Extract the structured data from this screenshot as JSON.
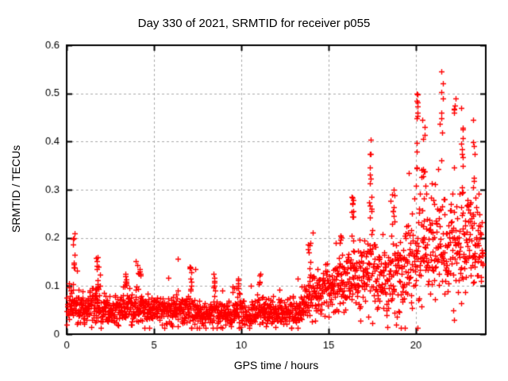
{
  "chart_data": {
    "type": "scatter",
    "title": "Day 330 of 2021, SRMTID for receiver p055",
    "xlabel": "GPS time / hours",
    "ylabel": "SRMTID / TECUs",
    "xlim": [
      0,
      24
    ],
    "ylim": [
      0,
      0.6
    ],
    "xticks": [
      0,
      5,
      10,
      15,
      20
    ],
    "xtick_labels": [
      "0",
      "5",
      "10",
      "15",
      "20"
    ],
    "yticks": [
      0,
      0.1,
      0.2,
      0.3,
      0.4,
      0.5,
      0.6
    ],
    "ytick_labels": [
      "0",
      "0.1",
      "0.2",
      "0.3",
      "0.4",
      "0.5",
      "0.6"
    ],
    "grid": "dashed",
    "legend": "none",
    "marker": "plus",
    "marker_color": "#ff0000",
    "frame_color": "#000000",
    "grid_color": "#aaaaaa",
    "background_color": "#ffffff",
    "text_color": "#000000",
    "points_per_hour": 76,
    "t_end": 23.85,
    "seed": 330,
    "envelope": [
      {
        "t": 0.0,
        "med": 0.065,
        "spread": 0.045
      },
      {
        "t": 0.5,
        "med": 0.06,
        "spread": 0.035
      },
      {
        "t": 1.0,
        "med": 0.048,
        "spread": 0.025
      },
      {
        "t": 1.7,
        "med": 0.058,
        "spread": 0.042
      },
      {
        "t": 2.5,
        "med": 0.045,
        "spread": 0.022
      },
      {
        "t": 3.5,
        "med": 0.053,
        "spread": 0.033
      },
      {
        "t": 4.2,
        "med": 0.056,
        "spread": 0.036
      },
      {
        "t": 5.0,
        "med": 0.048,
        "spread": 0.025
      },
      {
        "t": 6.0,
        "med": 0.05,
        "spread": 0.03
      },
      {
        "t": 7.1,
        "med": 0.053,
        "spread": 0.038
      },
      {
        "t": 8.0,
        "med": 0.042,
        "spread": 0.022
      },
      {
        "t": 8.5,
        "med": 0.05,
        "spread": 0.032
      },
      {
        "t": 9.0,
        "med": 0.042,
        "spread": 0.022
      },
      {
        "t": 9.8,
        "med": 0.05,
        "spread": 0.032
      },
      {
        "t": 10.5,
        "med": 0.04,
        "spread": 0.02
      },
      {
        "t": 11.0,
        "med": 0.048,
        "spread": 0.028
      },
      {
        "t": 12.0,
        "med": 0.045,
        "spread": 0.025
      },
      {
        "t": 12.7,
        "med": 0.052,
        "spread": 0.03
      },
      {
        "t": 13.3,
        "med": 0.048,
        "spread": 0.025
      },
      {
        "t": 13.9,
        "med": 0.075,
        "spread": 0.05
      },
      {
        "t": 14.5,
        "med": 0.09,
        "spread": 0.04
      },
      {
        "t": 15.0,
        "med": 0.1,
        "spread": 0.045
      },
      {
        "t": 15.7,
        "med": 0.11,
        "spread": 0.055
      },
      {
        "t": 16.3,
        "med": 0.115,
        "spread": 0.065
      },
      {
        "t": 17.0,
        "med": 0.125,
        "spread": 0.06
      },
      {
        "t": 17.4,
        "med": 0.14,
        "spread": 0.08
      },
      {
        "t": 18.0,
        "med": 0.115,
        "spread": 0.06
      },
      {
        "t": 18.6,
        "med": 0.12,
        "spread": 0.07
      },
      {
        "t": 19.2,
        "med": 0.115,
        "spread": 0.07
      },
      {
        "t": 19.8,
        "med": 0.15,
        "spread": 0.09
      },
      {
        "t": 20.3,
        "med": 0.19,
        "spread": 0.11
      },
      {
        "t": 20.8,
        "med": 0.18,
        "spread": 0.09
      },
      {
        "t": 21.3,
        "med": 0.19,
        "spread": 0.1
      },
      {
        "t": 21.8,
        "med": 0.2,
        "spread": 0.1
      },
      {
        "t": 22.3,
        "med": 0.195,
        "spread": 0.11
      },
      {
        "t": 22.8,
        "med": 0.185,
        "spread": 0.1
      },
      {
        "t": 23.3,
        "med": 0.19,
        "spread": 0.09
      },
      {
        "t": 23.85,
        "med": 0.185,
        "spread": 0.08
      }
    ],
    "spikes": [
      {
        "t": 0.4,
        "ymin": 0.1,
        "ymax": 0.21,
        "n": 10
      },
      {
        "t": 1.75,
        "ymin": 0.09,
        "ymax": 0.16,
        "n": 12
      },
      {
        "t": 3.4,
        "ymin": 0.08,
        "ymax": 0.125,
        "n": 7
      },
      {
        "t": 4.15,
        "ymin": 0.08,
        "ymax": 0.135,
        "n": 7
      },
      {
        "t": 7.1,
        "ymin": 0.08,
        "ymax": 0.14,
        "n": 6
      },
      {
        "t": 8.4,
        "ymin": 0.07,
        "ymax": 0.125,
        "n": 6
      },
      {
        "t": 9.8,
        "ymin": 0.07,
        "ymax": 0.115,
        "n": 6
      },
      {
        "t": 11.05,
        "ymin": 0.07,
        "ymax": 0.125,
        "n": 5
      },
      {
        "t": 13.9,
        "ymin": 0.09,
        "ymax": 0.185,
        "n": 8
      },
      {
        "t": 15.7,
        "ymin": 0.13,
        "ymax": 0.205,
        "n": 6
      },
      {
        "t": 16.35,
        "ymin": 0.18,
        "ymax": 0.285,
        "n": 10
      },
      {
        "t": 17.4,
        "ymin": 0.22,
        "ymax": 0.375,
        "n": 12
      },
      {
        "t": 18.7,
        "ymin": 0.2,
        "ymax": 0.3,
        "n": 9
      },
      {
        "t": 20.05,
        "ymin": 0.3,
        "ymax": 0.5,
        "n": 12
      },
      {
        "t": 20.45,
        "ymin": 0.25,
        "ymax": 0.445,
        "n": 8
      },
      {
        "t": 21.5,
        "ymin": 0.35,
        "ymax": 0.545,
        "n": 7
      },
      {
        "t": 22.2,
        "ymin": 0.3,
        "ymax": 0.49,
        "n": 6
      },
      {
        "t": 22.65,
        "ymin": 0.3,
        "ymax": 0.47,
        "n": 9
      },
      {
        "t": 23.3,
        "ymin": 0.25,
        "ymax": 0.445,
        "n": 7
      }
    ]
  }
}
